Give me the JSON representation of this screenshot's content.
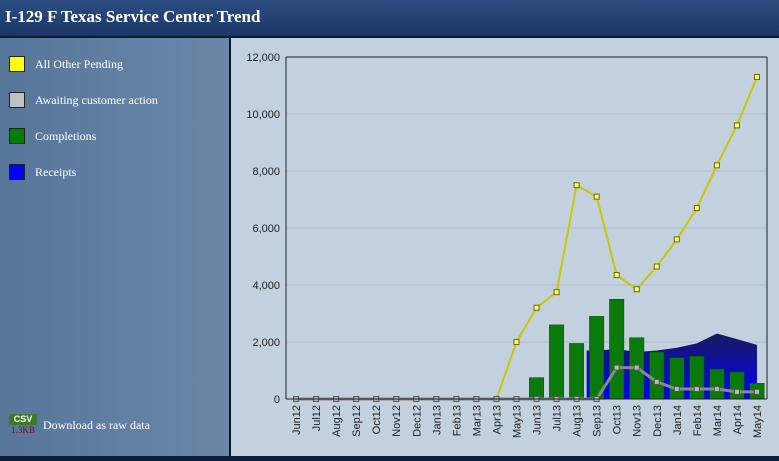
{
  "page": {
    "title": "I-129 F Texas Service Center Trend"
  },
  "legend": {
    "items": [
      {
        "label": "All Other Pending",
        "color": "#ffff00"
      },
      {
        "label": "Awaiting customer action",
        "color": "#c0c0c0"
      },
      {
        "label": "Completions",
        "color": "#008000"
      },
      {
        "label": "Receipts",
        "color": "#0000ff"
      }
    ]
  },
  "download": {
    "icon_label": "CSV",
    "size": "1.3KB",
    "label": "Download as raw data"
  },
  "colors": {
    "pending_line": "#c8c800",
    "pending_fill": "#ffff66",
    "awaiting_line": "#8a8a8a",
    "awaiting_marker": "#b8b8b8",
    "completions": "#0a7a0a",
    "receipts_top": "#1a1a5a",
    "receipts_bottom": "#0000ff"
  },
  "chart_data": {
    "type": "bar",
    "categories": [
      "Jun12",
      "Jul12",
      "Aug12",
      "Sep12",
      "Oct12",
      "Nov12",
      "Dec12",
      "Jan13",
      "Feb13",
      "Mar13",
      "Apr13",
      "May13",
      "Jun13",
      "Jul13",
      "Aug13",
      "Sep13",
      "Oct13",
      "Nov13",
      "Dec13",
      "Jan14",
      "Feb14",
      "Mar14",
      "Apr14",
      "May14"
    ],
    "ylim": [
      0,
      12000
    ],
    "yticks": [
      "0",
      "2,000",
      "4,000",
      "6,000",
      "8,000",
      "10,000",
      "12,000"
    ],
    "ytick_values": [
      0,
      2000,
      4000,
      6000,
      8000,
      10000,
      12000
    ],
    "grid": true,
    "series": [
      {
        "name": "Receipts",
        "kind": "area",
        "values": [
          0,
          0,
          0,
          0,
          0,
          0,
          0,
          0,
          0,
          0,
          0,
          0,
          0,
          0,
          0,
          1700,
          1750,
          1650,
          1700,
          1800,
          1950,
          2300,
          2100,
          1900
        ]
      },
      {
        "name": "Completions",
        "kind": "bar",
        "values": [
          0,
          0,
          0,
          0,
          0,
          0,
          0,
          0,
          0,
          0,
          0,
          0,
          750,
          2600,
          1950,
          2900,
          3500,
          2150,
          1650,
          1450,
          1500,
          1050,
          950,
          550
        ]
      },
      {
        "name": "All Other Pending",
        "kind": "line",
        "values": [
          0,
          0,
          0,
          0,
          0,
          0,
          0,
          0,
          0,
          0,
          0,
          2000,
          3200,
          3750,
          7500,
          7100,
          4350,
          3850,
          4650,
          5600,
          6700,
          8200,
          9600,
          11300
        ]
      },
      {
        "name": "Awaiting customer action",
        "kind": "line",
        "values": [
          0,
          0,
          0,
          0,
          0,
          0,
          0,
          0,
          0,
          0,
          0,
          0,
          0,
          0,
          0,
          0,
          1100,
          1100,
          600,
          350,
          350,
          350,
          250,
          250
        ]
      }
    ]
  }
}
